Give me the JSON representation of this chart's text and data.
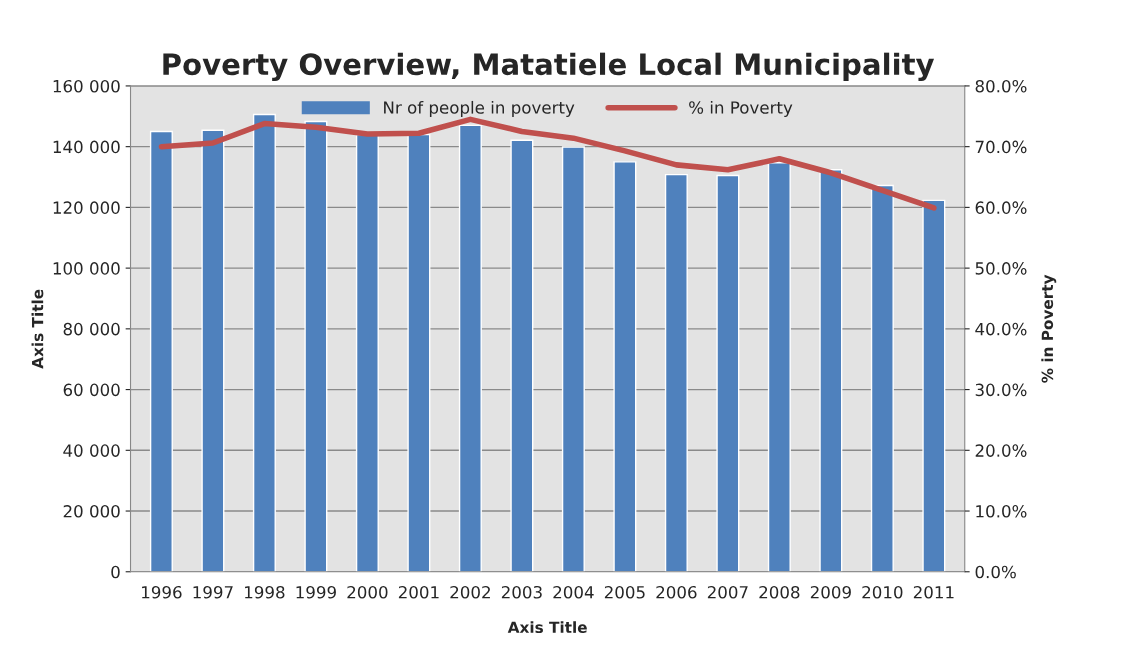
{
  "chart_data": {
    "type": "bar",
    "title": "Poverty Overview, Matatiele Local Municipality",
    "xlabel": "Axis Title",
    "ylabel": "Axis Title",
    "y2label": "% in Poverty",
    "categories": [
      "1996",
      "1997",
      "1998",
      "1999",
      "2000",
      "2001",
      "2002",
      "2003",
      "2004",
      "2005",
      "2006",
      "2007",
      "2008",
      "2009",
      "2010",
      "2011"
    ],
    "series": [
      {
        "name": "Nr of people in poverty",
        "color": "#4f81bd",
        "values": [
          145000,
          145400,
          150600,
          148300,
          144000,
          144000,
          147000,
          142100,
          139900,
          135000,
          130800,
          130500,
          134700,
          132400,
          127200,
          122300
        ]
      },
      {
        "name": "% in Poverty",
        "color": "#c0504d",
        "type": "line",
        "axis": "y2",
        "values": [
          70.0,
          70.6,
          73.8,
          73.2,
          72.1,
          72.2,
          74.5,
          72.5,
          71.4,
          69.3,
          67.0,
          66.2,
          68.0,
          65.7,
          62.8,
          59.9
        ]
      }
    ],
    "ylim": [
      0,
      160000
    ],
    "yticks": [
      0,
      {
        "value": 20000,
        "label": "20 000"
      },
      {
        "value": 40000,
        "label": "40 000"
      },
      {
        "value": 60000,
        "label": "60 000"
      },
      {
        "value": 80000,
        "label": "80 000"
      },
      {
        "value": 100000,
        "label": "100 000"
      },
      {
        "value": 120000,
        "label": "120 000"
      },
      {
        "value": 140000,
        "label": "140 000"
      },
      {
        "value": 160000,
        "label": "160 000"
      }
    ],
    "y2lim": [
      0,
      80
    ],
    "y2ticks": [
      {
        "value": 0,
        "label": "0.0%"
      },
      {
        "value": 10,
        "label": "10.0%"
      },
      {
        "value": 20,
        "label": "20.0%"
      },
      {
        "value": 30,
        "label": "30.0%"
      },
      {
        "value": 40,
        "label": "40.0%"
      },
      {
        "value": 50,
        "label": "50.0%"
      },
      {
        "value": 60,
        "label": "60.0%"
      },
      {
        "value": 70,
        "label": "70.0%"
      },
      {
        "value": 80,
        "label": "80.0%"
      }
    ],
    "grid": "y",
    "legend": "top",
    "marker": "none",
    "line_style": "solid"
  }
}
